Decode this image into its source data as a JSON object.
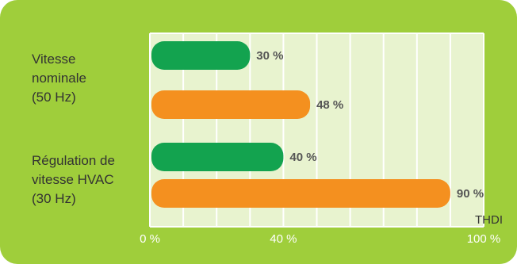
{
  "chart_data": {
    "type": "bar",
    "orientation": "horizontal",
    "categories": [
      [
        "Vitesse",
        "nominale",
        "(50 Hz)"
      ],
      [
        "Régulation de",
        "vitesse HVAC",
        "(30 Hz)"
      ]
    ],
    "bars": [
      {
        "category": 0,
        "value": 30,
        "label": "30 %",
        "color": "#13a34f"
      },
      {
        "category": 0,
        "value": 48,
        "label": "48 %",
        "color": "#f4901f"
      },
      {
        "category": 1,
        "value": 40,
        "label": "40 %",
        "color": "#13a34f"
      },
      {
        "category": 1,
        "value": 90,
        "label": "90 %",
        "color": "#f4901f"
      }
    ],
    "xlim": [
      0,
      100
    ],
    "grid_step": 10,
    "x_ticks": [
      {
        "value": 0,
        "label": "0 %"
      },
      {
        "value": 40,
        "label": "40 %"
      },
      {
        "value": 100,
        "label": "100 %"
      }
    ],
    "xlabel": "THDI",
    "grid": true,
    "colors": {
      "background": "#9fce3b",
      "plot_area": "#e8f3cf",
      "grid": "#ffffff"
    }
  }
}
